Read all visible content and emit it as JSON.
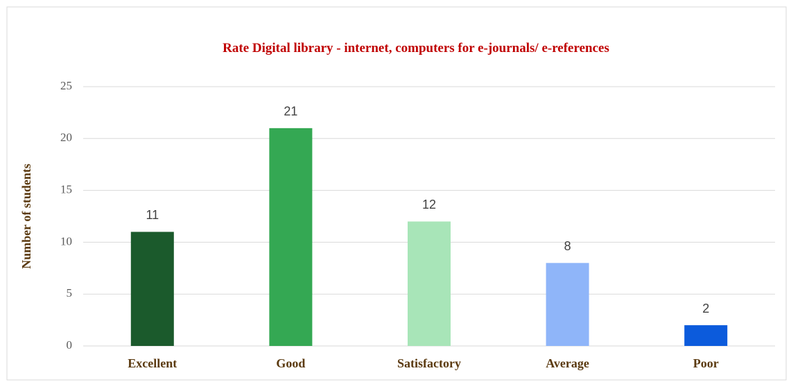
{
  "chart_data": {
    "type": "bar",
    "title": "Rate Digital library - internet, computers for e-journals/ e-references",
    "y_label": "Number of students",
    "categories": [
      "Excellent",
      "Good",
      "Satisfactory",
      "Average",
      "Poor"
    ],
    "values": [
      11,
      21,
      12,
      8,
      2
    ],
    "colors": [
      "#1b5a2c",
      "#34a853",
      "#a8e5b8",
      "#8fb5f9",
      "#0c5bdc"
    ],
    "ylim": [
      0,
      25
    ],
    "yticks": [
      0,
      5,
      10,
      15,
      20,
      25
    ],
    "grid": true
  }
}
